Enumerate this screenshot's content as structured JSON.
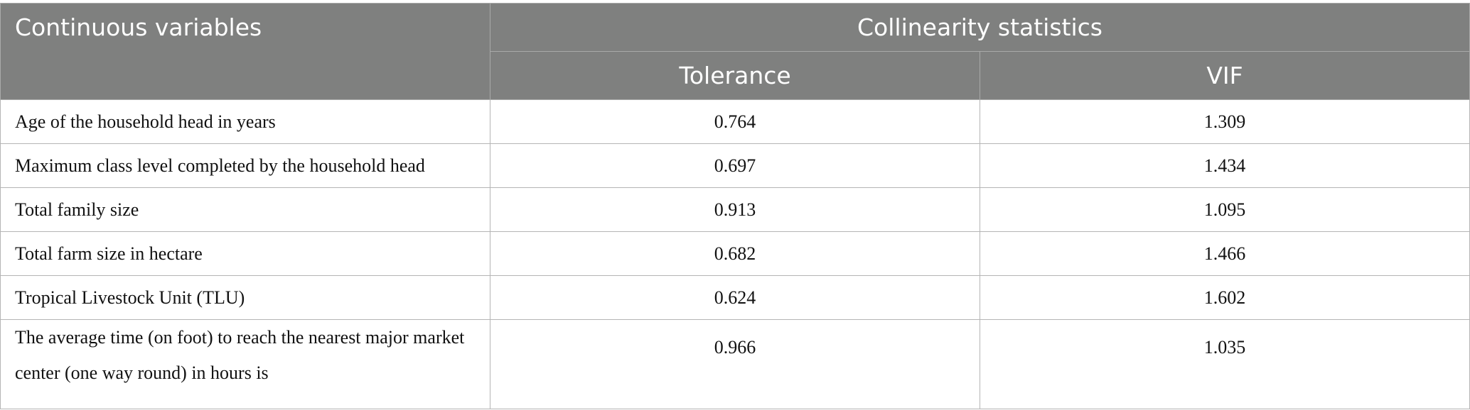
{
  "table": {
    "header": {
      "variable": "Continuous variables",
      "group": "Collinearity statistics",
      "columns": [
        "Tolerance",
        "VIF"
      ]
    },
    "rows": [
      [
        "Age of the household head in years",
        "0.764",
        "1.309"
      ],
      [
        "Maximum class level completed by the household head",
        "0.697",
        "1.434"
      ],
      [
        "Total family size",
        "0.913",
        "1.095"
      ],
      [
        "Total farm size in hectare",
        "0.682",
        "1.466"
      ],
      [
        "Tropical Livestock Unit (TLU)",
        "0.624",
        "1.602"
      ],
      [
        "The average time (on foot) to reach the nearest major market center (one way round) in hours is",
        "0.966",
        "1.035"
      ]
    ]
  }
}
